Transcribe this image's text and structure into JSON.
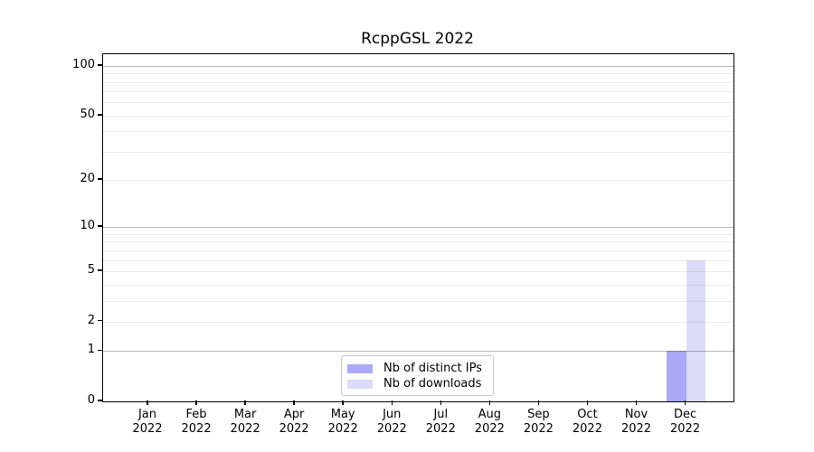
{
  "figure": {
    "title": "RcppGSL 2022"
  },
  "chart_data": {
    "type": "bar",
    "title": "RcppGSL 2022",
    "x": {
      "months": [
        "Jan",
        "Feb",
        "Mar",
        "Apr",
        "May",
        "Jun",
        "Jul",
        "Aug",
        "Sep",
        "Oct",
        "Nov",
        "Dec"
      ],
      "year": "2022"
    },
    "y_scale": "log1p",
    "ylim": [
      0,
      118
    ],
    "y_ticks": [
      0,
      1,
      2,
      5,
      10,
      20,
      50,
      100
    ],
    "y_major_gridlines": [
      1,
      10,
      100
    ],
    "y_minor_gridlines": [
      2,
      3,
      4,
      5,
      6,
      7,
      8,
      9,
      20,
      30,
      40,
      50,
      60,
      70,
      80,
      90
    ],
    "grid": true,
    "legend_position": "bottom-center",
    "series": [
      {
        "name": "Nb of distinct IPs",
        "color": "#a9a9f7",
        "values": [
          0,
          0,
          0,
          0,
          0,
          0,
          0,
          0,
          0,
          0,
          0,
          1
        ]
      },
      {
        "name": "Nb of downloads",
        "color": "#dcdcf9",
        "values": [
          0,
          0,
          0,
          0,
          0,
          0,
          0,
          0,
          0,
          0,
          0,
          6
        ]
      }
    ]
  }
}
